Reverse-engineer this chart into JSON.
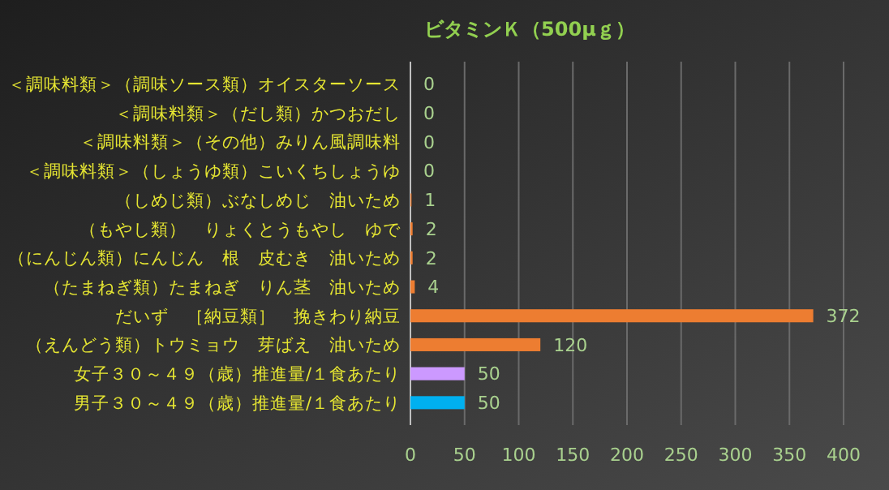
{
  "chart_data": {
    "type": "bar",
    "orientation": "horizontal",
    "title": "ビタミンＫ（500μｇ）",
    "categories": [
      "＜調味料類＞（調味ソース類）オイスターソース",
      "＜調味料類＞（だし類）かつおだし",
      "＜調味料類＞（その他）みりん風調味料",
      "＜調味料類＞（しょうゆ類）こいくちしょうゆ",
      "（しめじ類）ぶなしめじ　油いため",
      "（もやし類）　りょくとうもやし　ゆで",
      "（にんじん類）にんじん　根　皮むき　油いため",
      "（たまねぎ類）たまねぎ　りん茎　油いため",
      "だいず　［納豆類］　挽きわり納豆",
      "（えんどう類）トウミョウ　芽ばえ　油いため",
      "女子３０～４９（歳）推進量/１食あたり",
      "男子３０～４９（歳）推進量/１食あたり"
    ],
    "values": [
      0,
      0,
      0,
      0,
      1,
      2,
      2,
      4,
      372,
      120,
      50,
      50
    ],
    "colors": [
      "#ed7d31",
      "#ed7d31",
      "#ed7d31",
      "#ed7d31",
      "#ed7d31",
      "#ed7d31",
      "#ed7d31",
      "#ed7d31",
      "#ed7d31",
      "#ed7d31",
      "#cc99ff",
      "#00b0f0"
    ],
    "xlim": [
      0,
      400
    ],
    "xticks": [
      0,
      50,
      100,
      150,
      200,
      250,
      300,
      350,
      400
    ],
    "grid": "x",
    "data_labels": true
  }
}
